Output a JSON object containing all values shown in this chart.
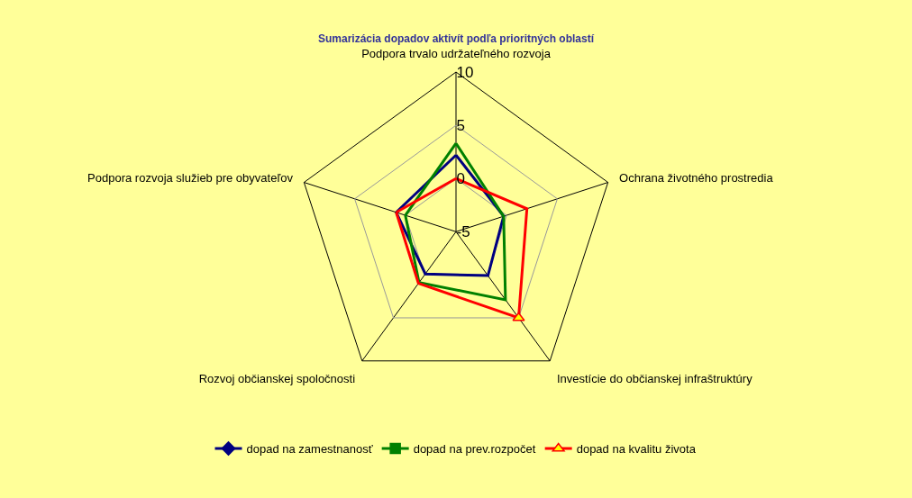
{
  "chart_data": {
    "type": "radar",
    "title": "Sumarizácia dopadov aktivít podľa prioritných oblastí",
    "categories": [
      "Podpora trvalo udržateľného rozvoja",
      "Ochrana životného prostredia",
      "Investície do občianskej infraštruktúry",
      "Rozvoj občianskej spoločnosti",
      "Podpora rozvoja služieb pre obyvateľov"
    ],
    "series": [
      {
        "name": "dopad na zamestnanosť",
        "color": "#000080",
        "marker": "diamond",
        "values": [
          2.2,
          -0.3,
          0.1,
          -0.1,
          0.9
        ]
      },
      {
        "name": "dopad na prev.rozpočet",
        "color": "#008000",
        "marker": "square",
        "values": [
          3.3,
          -0.3,
          2.9,
          0.9,
          0
        ]
      },
      {
        "name": "dopad na kvalitu života",
        "color": "#ff0000",
        "marker": "triangle",
        "values": [
          0,
          2,
          5,
          1,
          0.9
        ]
      }
    ],
    "ylim": [
      -5,
      10
    ],
    "yticks": [
      -5,
      0,
      5,
      10
    ],
    "grid": true,
    "legend": "bottom"
  }
}
